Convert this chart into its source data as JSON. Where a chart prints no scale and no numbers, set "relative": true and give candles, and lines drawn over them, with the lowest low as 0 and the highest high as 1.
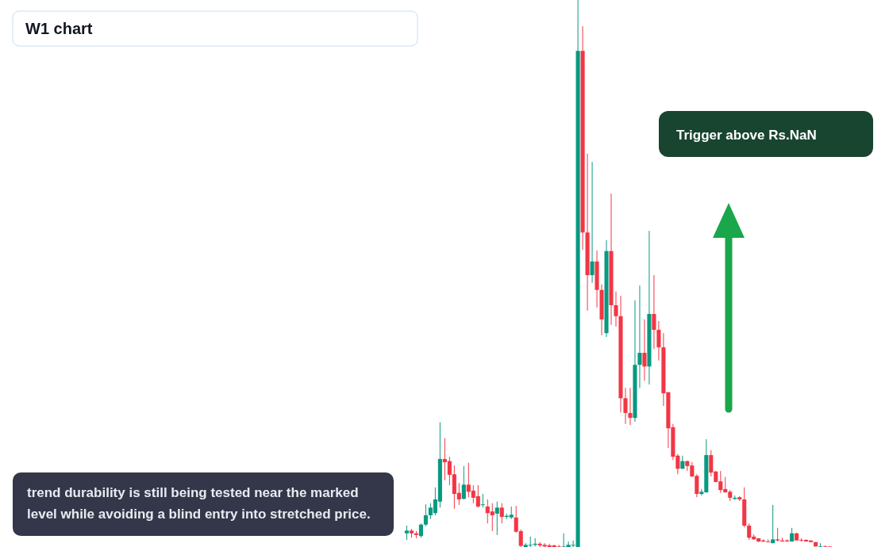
{
  "chart_data": {
    "type": "candlestick",
    "title": "W1 chart",
    "relative": true,
    "annotations": [
      "Trigger above Rs.NaN",
      "trend durability is still being tested near the marked level while avoiding a blind entry into stretched price."
    ],
    "categories": [
      null,
      null,
      null,
      null,
      null,
      null,
      null,
      null,
      null,
      null,
      null,
      null,
      null,
      null,
      null,
      null,
      null,
      null,
      null,
      null,
      null,
      null,
      null,
      null,
      null,
      null,
      null,
      null,
      null,
      null,
      null,
      null,
      null,
      null,
      null,
      null,
      null,
      null,
      null,
      null,
      null,
      null,
      null,
      null,
      null,
      null,
      null,
      null,
      null,
      null,
      null,
      null,
      null,
      null,
      null,
      null,
      null,
      null,
      null,
      null,
      null,
      null,
      null,
      null,
      null,
      null,
      null,
      null,
      null,
      null,
      null,
      null,
      null,
      null,
      null,
      null,
      null,
      null,
      null,
      null,
      null,
      null,
      null,
      null,
      null,
      null,
      null,
      null,
      null,
      null
    ],
    "ohlc": [
      [
        0.025,
        0.039,
        0.013,
        0.03
      ],
      [
        0.03,
        0.033,
        0.017,
        0.025
      ],
      [
        0.025,
        0.029,
        0.016,
        0.022
      ],
      [
        0.02,
        0.043,
        0.017,
        0.041
      ],
      [
        0.041,
        0.078,
        0.038,
        0.058
      ],
      [
        0.058,
        0.08,
        0.051,
        0.072
      ],
      [
        0.062,
        0.109,
        0.058,
        0.087
      ],
      [
        0.083,
        0.228,
        0.072,
        0.161
      ],
      [
        0.161,
        0.199,
        0.122,
        0.155
      ],
      [
        0.157,
        0.165,
        0.113,
        0.132
      ],
      [
        0.133,
        0.149,
        0.07,
        0.097
      ],
      [
        0.099,
        0.117,
        0.077,
        0.087
      ],
      [
        0.088,
        0.148,
        0.087,
        0.114
      ],
      [
        0.114,
        0.154,
        0.091,
        0.101
      ],
      [
        0.103,
        0.113,
        0.08,
        0.09
      ],
      [
        0.093,
        0.113,
        0.072,
        0.074
      ],
      [
        0.077,
        0.097,
        0.072,
        0.078
      ],
      [
        0.074,
        0.087,
        0.043,
        0.062
      ],
      [
        0.065,
        0.08,
        0.029,
        0.058
      ],
      [
        0.061,
        0.083,
        0.022,
        0.072
      ],
      [
        0.072,
        0.08,
        0.043,
        0.055
      ],
      [
        0.055,
        0.061,
        0.051,
        0.057
      ],
      [
        0.054,
        0.074,
        0.051,
        0.059
      ],
      [
        0.054,
        0.075,
        0.026,
        0.028
      ],
      [
        0.029,
        0.032,
        0,
        0.002
      ],
      [
        0,
        0.007,
        0,
        0.004
      ],
      [
        0.003,
        0.019,
        0,
        0.004
      ],
      [
        0.004,
        0.016,
        0.001,
        0.006
      ],
      [
        0.006,
        0.009,
        0,
        0.003
      ],
      [
        0.004,
        0.007,
        0,
        0.001
      ],
      [
        0.003,
        0.006,
        0,
        0
      ],
      [
        0.003,
        0.004,
        0,
        0
      ],
      [
        0.001,
        0.004,
        0,
        0
      ],
      [
        0,
        0.025,
        0,
        0.001
      ],
      [
        0,
        0.01,
        0,
        0.004
      ],
      [
        0.003,
        0.012,
        0,
        0.004
      ],
      [
        0,
        1,
        0,
        0.907
      ],
      [
        0.907,
        0.952,
        0.543,
        0.575
      ],
      [
        0.575,
        0.719,
        0.432,
        0.497
      ],
      [
        0.497,
        0.704,
        0.483,
        0.522
      ],
      [
        0.522,
        0.542,
        0.438,
        0.47
      ],
      [
        0.47,
        0.48,
        0.387,
        0.416
      ],
      [
        0.391,
        0.561,
        0.384,
        0.541
      ],
      [
        0.541,
        0.646,
        0.406,
        0.442
      ],
      [
        0.442,
        0.467,
        0.403,
        0.422
      ],
      [
        0.422,
        0.459,
        0.246,
        0.272
      ],
      [
        0.272,
        0.291,
        0.225,
        0.245
      ],
      [
        0.245,
        0.291,
        0.223,
        0.236
      ],
      [
        0.236,
        0.451,
        0.229,
        0.333
      ],
      [
        0.333,
        0.478,
        0.291,
        0.355
      ],
      [
        0.355,
        0.416,
        0.304,
        0.33
      ],
      [
        0.33,
        0.578,
        0.297,
        0.426
      ],
      [
        0.426,
        0.497,
        0.362,
        0.397
      ],
      [
        0.397,
        0.413,
        0.341,
        0.365
      ],
      [
        0.365,
        0.391,
        0.258,
        0.281
      ],
      [
        0.283,
        0.283,
        0.181,
        0.217
      ],
      [
        0.219,
        0.225,
        0.159,
        0.165
      ],
      [
        0.167,
        0.17,
        0.133,
        0.143
      ],
      [
        0.143,
        0.167,
        0.143,
        0.157
      ],
      [
        0.157,
        0.158,
        0.139,
        0.148
      ],
      [
        0.149,
        0.155,
        0.128,
        0.129
      ],
      [
        0.13,
        0.133,
        0.091,
        0.097
      ],
      [
        0.097,
        0.106,
        0.094,
        0.101
      ],
      [
        0.1,
        0.197,
        0.099,
        0.168
      ],
      [
        0.168,
        0.177,
        0.129,
        0.136
      ],
      [
        0.138,
        0.139,
        0.118,
        0.119
      ],
      [
        0.12,
        0.139,
        0.099,
        0.104
      ],
      [
        0.106,
        0.128,
        0.099,
        0.1
      ],
      [
        0.101,
        0.104,
        0.084,
        0.09
      ],
      [
        0.088,
        0.094,
        0.086,
        0.09
      ],
      [
        0.091,
        0.093,
        0.084,
        0.087
      ],
      [
        0.087,
        0.109,
        0.036,
        0.039
      ],
      [
        0.039,
        0.043,
        0.013,
        0.017
      ],
      [
        0.019,
        0.023,
        0.013,
        0.014
      ],
      [
        0.016,
        0.016,
        0.009,
        0.01
      ],
      [
        0.012,
        0.014,
        0.009,
        0.01
      ],
      [
        0.01,
        0.014,
        0.009,
        0.009
      ],
      [
        0.007,
        0.077,
        0.007,
        0.014
      ],
      [
        0.014,
        0.035,
        0.01,
        0.012
      ],
      [
        0.012,
        0.017,
        0.01,
        0.01
      ],
      [
        0.012,
        0.014,
        0.01,
        0.01
      ],
      [
        0.01,
        0.035,
        0.01,
        0.025
      ],
      [
        0.025,
        0.026,
        0.012,
        0.012
      ],
      [
        0.013,
        0.016,
        0.01,
        0.012
      ],
      [
        0.013,
        0.014,
        0.01,
        0.01
      ],
      [
        0.012,
        0.012,
        0.009,
        0.009
      ],
      [
        0.009,
        0.009,
        0.001,
        0.001
      ],
      [
        0,
        0.007,
        0,
        0.001
      ],
      [
        0.001,
        0.003,
        0,
        0
      ],
      [
        0.001,
        0.001,
        0,
        0
      ]
    ]
  }
}
